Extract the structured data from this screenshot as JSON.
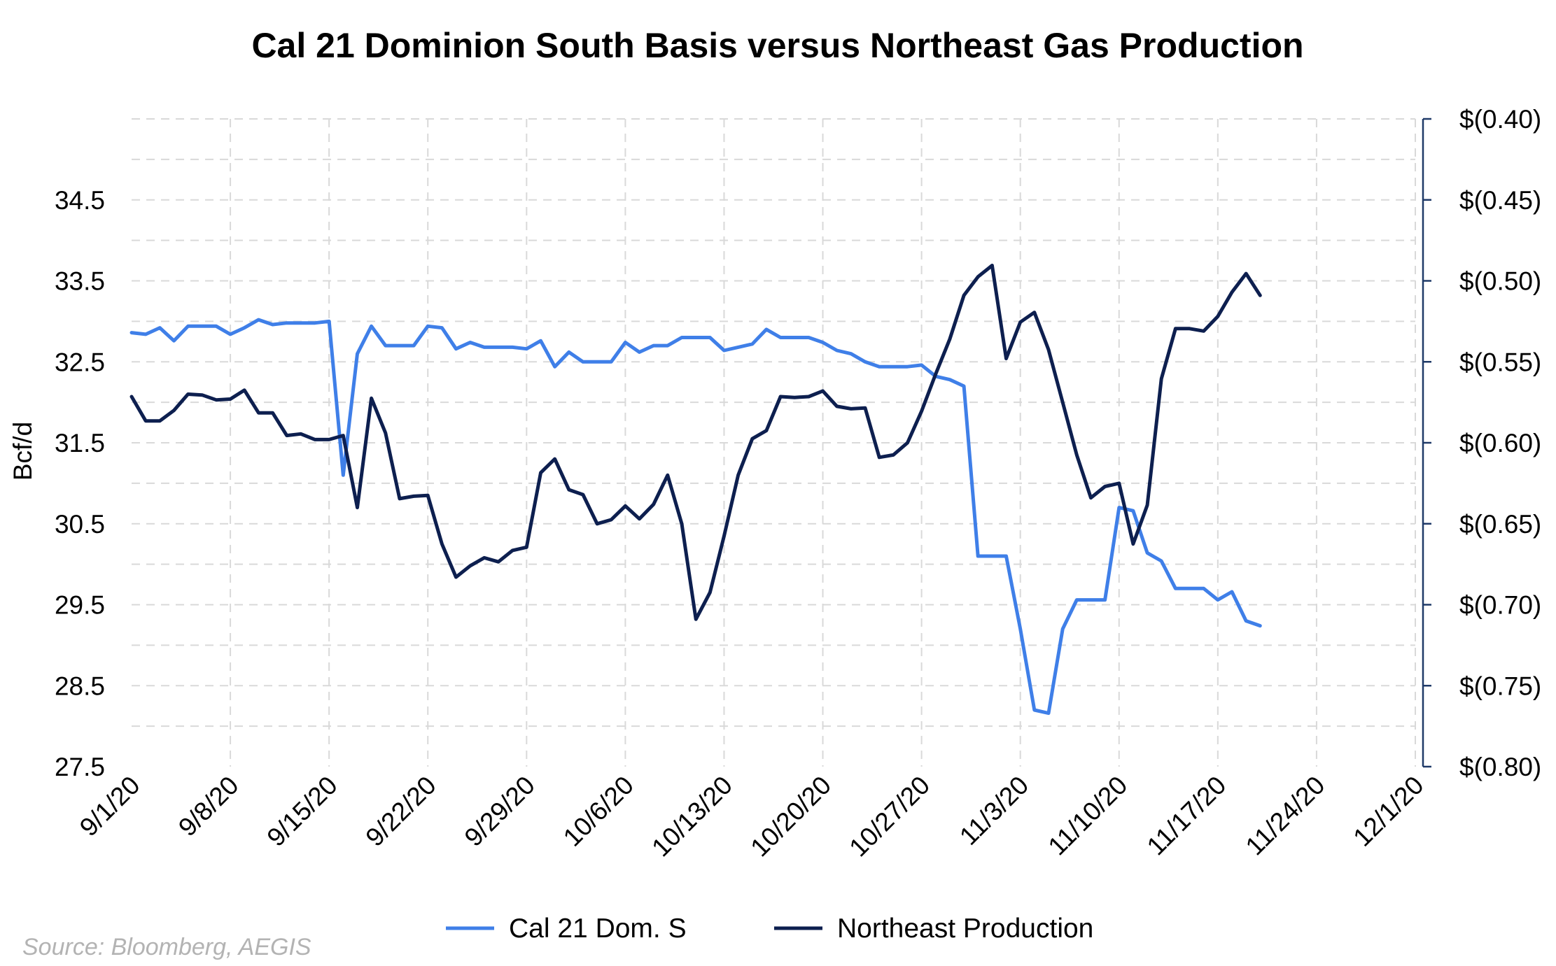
{
  "chart_data": {
    "type": "line",
    "title": "Cal 21 Dominion South Basis versus Northeast Gas Production",
    "ylabel": "Bcf/d",
    "y2label": "",
    "source": "Source: Bloomberg, AEGIS",
    "x_tick_labels": [
      "9/1/20",
      "9/8/20",
      "9/15/20",
      "9/22/20",
      "9/29/20",
      "10/6/20",
      "10/13/20",
      "10/20/20",
      "10/27/20",
      "11/3/20",
      "11/10/20",
      "11/17/20",
      "11/24/20",
      "12/1/20"
    ],
    "y_left": {
      "min": 27.5,
      "max": 35.5,
      "ticks": [
        "27.5",
        "28.5",
        "29.5",
        "30.5",
        "31.5",
        "32.5",
        "33.5",
        "34.5"
      ],
      "tick_values": [
        27.5,
        28.5,
        29.5,
        30.5,
        31.5,
        32.5,
        33.5,
        34.5
      ]
    },
    "y_right": {
      "min": -0.8,
      "max": -0.4,
      "ticks": [
        "$(0.80)",
        "$(0.75)",
        "$(0.70)",
        "$(0.65)",
        "$(0.60)",
        "$(0.55)",
        "$(0.50)",
        "$(0.45)",
        "$(0.40)"
      ],
      "tick_values": [
        -0.8,
        -0.75,
        -0.7,
        -0.65,
        -0.6,
        -0.55,
        -0.5,
        -0.45,
        -0.4
      ]
    },
    "grid": true,
    "legend_position": "bottom",
    "series": [
      {
        "name": "Cal 21 Dom. S",
        "axis": "right",
        "color": "#3f7fe8",
        "x": [
          "9/1/20",
          "9/2/20",
          "9/3/20",
          "9/4/20",
          "9/5/20",
          "9/6/20",
          "9/7/20",
          "9/8/20",
          "9/9/20",
          "9/10/20",
          "9/11/20",
          "9/12/20",
          "9/13/20",
          "9/14/20",
          "9/15/20",
          "9/16/20",
          "9/17/20",
          "9/18/20",
          "9/19/20",
          "9/20/20",
          "9/21/20",
          "9/22/20",
          "9/23/20",
          "9/24/20",
          "9/25/20",
          "9/26/20",
          "9/27/20",
          "9/28/20",
          "9/29/20",
          "9/30/20",
          "10/1/20",
          "10/2/20",
          "10/3/20",
          "10/4/20",
          "10/5/20",
          "10/6/20",
          "10/7/20",
          "10/8/20",
          "10/9/20",
          "10/10/20",
          "10/11/20",
          "10/12/20",
          "10/13/20",
          "10/14/20",
          "10/15/20",
          "10/16/20",
          "10/17/20",
          "10/18/20",
          "10/19/20",
          "10/20/20",
          "10/21/20",
          "10/22/20",
          "10/23/20",
          "10/24/20",
          "10/25/20",
          "10/26/20",
          "10/27/20",
          "10/28/20",
          "10/29/20",
          "10/30/20",
          "10/31/20",
          "11/1/20",
          "11/2/20",
          "11/3/20",
          "11/4/20",
          "11/5/20",
          "11/6/20",
          "11/7/20",
          "11/8/20",
          "11/9/20",
          "11/10/20",
          "11/11/20",
          "11/12/20",
          "11/13/20",
          "11/14/20",
          "11/15/20",
          "11/16/20",
          "11/17/20",
          "11/18/20",
          "11/19/20",
          "11/20/20"
        ],
        "values": [
          -0.532,
          -0.533,
          -0.529,
          -0.537,
          -0.528,
          -0.528,
          -0.528,
          -0.533,
          -0.529,
          -0.524,
          -0.527,
          -0.526,
          -0.526,
          -0.526,
          -0.525,
          -0.62,
          -0.545,
          -0.528,
          -0.54,
          -0.54,
          -0.54,
          -0.528,
          -0.529,
          -0.542,
          -0.538,
          -0.541,
          -0.541,
          -0.541,
          -0.542,
          -0.537,
          -0.553,
          -0.544,
          -0.55,
          -0.55,
          -0.55,
          -0.538,
          -0.544,
          -0.54,
          -0.54,
          -0.535,
          -0.535,
          -0.535,
          -0.543,
          -0.541,
          -0.539,
          -0.53,
          -0.535,
          -0.535,
          -0.535,
          -0.538,
          -0.543,
          -0.545,
          -0.55,
          -0.553,
          -0.553,
          -0.553,
          -0.552,
          -0.559,
          -0.561,
          -0.565,
          -0.67,
          -0.67,
          -0.67,
          -0.715,
          -0.765,
          -0.767,
          -0.715,
          -0.697,
          -0.697,
          -0.697,
          -0.64,
          -0.642,
          -0.668,
          -0.673,
          -0.69,
          -0.69,
          -0.69,
          -0.697,
          -0.692,
          -0.71,
          -0.713
        ]
      },
      {
        "name": "Northeast Production",
        "axis": "left",
        "color": "#0d1f4f",
        "x": [
          "9/1/20",
          "9/2/20",
          "9/3/20",
          "9/4/20",
          "9/5/20",
          "9/6/20",
          "9/7/20",
          "9/8/20",
          "9/9/20",
          "9/10/20",
          "9/11/20",
          "9/12/20",
          "9/13/20",
          "9/14/20",
          "9/15/20",
          "9/16/20",
          "9/17/20",
          "9/18/20",
          "9/19/20",
          "9/20/20",
          "9/21/20",
          "9/22/20",
          "9/23/20",
          "9/24/20",
          "9/25/20",
          "9/26/20",
          "9/27/20",
          "9/28/20",
          "9/29/20",
          "9/30/20",
          "10/1/20",
          "10/2/20",
          "10/3/20",
          "10/4/20",
          "10/5/20",
          "10/6/20",
          "10/7/20",
          "10/8/20",
          "10/9/20",
          "10/10/20",
          "10/11/20",
          "10/12/20",
          "10/13/20",
          "10/14/20",
          "10/15/20",
          "10/16/20",
          "10/17/20",
          "10/18/20",
          "10/19/20",
          "10/20/20",
          "10/21/20",
          "10/22/20",
          "10/23/20",
          "10/24/20",
          "10/25/20",
          "10/26/20",
          "10/27/20",
          "10/28/20",
          "10/29/20",
          "10/30/20",
          "10/31/20",
          "11/1/20",
          "11/2/20",
          "11/3/20",
          "11/4/20",
          "11/5/20",
          "11/6/20",
          "11/7/20",
          "11/8/20",
          "11/9/20",
          "11/10/20",
          "11/11/20",
          "11/12/20",
          "11/13/20",
          "11/14/20",
          "11/15/20",
          "11/16/20",
          "11/17/20",
          "11/18/20",
          "11/19/20",
          "11/20/20"
        ],
        "values": [
          32.07,
          31.77,
          31.77,
          31.9,
          32.1,
          32.09,
          32.03,
          32.04,
          32.15,
          31.87,
          31.87,
          31.59,
          31.61,
          31.54,
          31.54,
          31.59,
          30.7,
          32.05,
          31.62,
          30.81,
          30.84,
          30.85,
          30.25,
          29.84,
          29.98,
          30.08,
          30.03,
          30.17,
          30.21,
          31.13,
          31.3,
          30.92,
          30.86,
          30.5,
          30.55,
          30.72,
          30.56,
          30.74,
          31.1,
          30.5,
          29.32,
          29.65,
          30.35,
          31.1,
          31.55,
          31.65,
          32.07,
          32.06,
          32.07,
          32.14,
          31.95,
          31.92,
          31.93,
          31.32,
          31.35,
          31.5,
          31.89,
          32.35,
          32.78,
          33.32,
          33.55,
          33.69,
          32.54,
          32.99,
          33.11,
          32.65,
          32.0,
          31.35,
          30.82,
          30.96,
          31.0,
          30.25,
          30.73,
          32.29,
          32.91,
          32.91,
          32.88,
          33.06,
          33.36,
          33.59,
          33.32
        ]
      }
    ]
  }
}
